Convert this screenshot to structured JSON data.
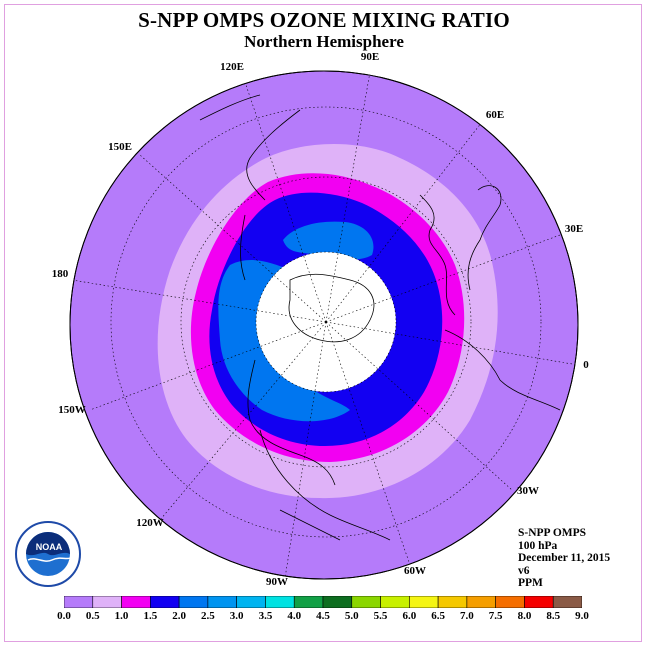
{
  "title": "S-NPP OMPS OZONE MIXING RATIO",
  "subtitle": "Northern Hemisphere",
  "longitude_labels": [
    "90E",
    "60E",
    "30E",
    "0",
    "30W",
    "60W",
    "90W",
    "120W",
    "150W",
    "180",
    "150E",
    "120E"
  ],
  "info": {
    "instrument": "S-NPP OMPS",
    "level": "100 hPa",
    "date": "December 11, 2015",
    "version": "v6",
    "units": "PPM"
  },
  "logo_text": "NOAA",
  "colorbar": {
    "labels": [
      "0.0",
      "0.5",
      "1.0",
      "1.5",
      "2.0",
      "2.5",
      "3.0",
      "3.5",
      "4.0",
      "4.5",
      "5.0",
      "5.5",
      "6.0",
      "6.5",
      "7.0",
      "7.5",
      "8.0",
      "8.5",
      "9.0"
    ],
    "colors": [
      "#b57bfa",
      "#dfb2f8",
      "#f200f2",
      "#1200f2",
      "#0076f0",
      "#0094f0",
      "#00b4f0",
      "#00e2e2",
      "#12a046",
      "#0e6e20",
      "#8bd600",
      "#c8f000",
      "#f5f514",
      "#f5c800",
      "#f59e00",
      "#f56e00",
      "#f50000",
      "#8a5a46"
    ]
  },
  "map_colors": {
    "background": "#b57bfa",
    "band_0_5_1_0": "#dfb2f8",
    "band_1_0_1_5": "#f200f2",
    "band_1_5_2_0": "#1200f2",
    "band_2_0_2_5": "#0076f0",
    "no_data": "#ffffff"
  }
}
